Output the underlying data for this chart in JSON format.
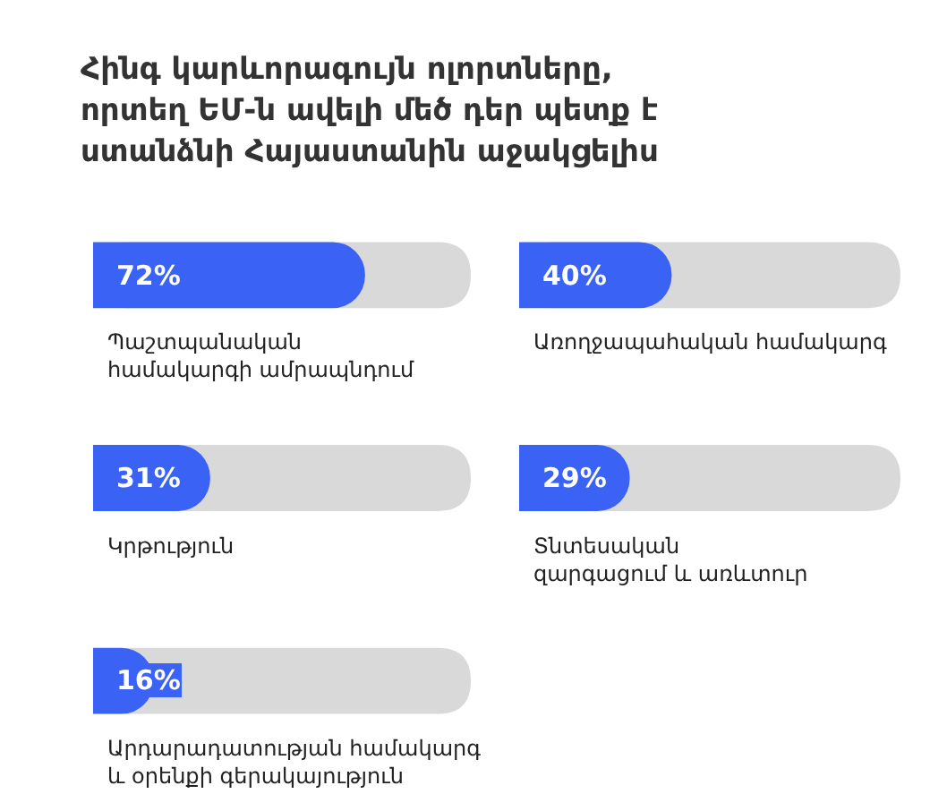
{
  "chart_data": [
    {
      "type": "other",
      "title": "Հինգ կարևորագույն ոլորտները, որտեղ ԵՄ-ն ավելի մեծ դեր պետք է ստանձնի Հայաստանին աջակցելիս"
    },
    {
      "type": "bar",
      "orientation": "horizontal",
      "categories": [
        "Պաշտպանական\nհամակարգի ամրապնդում",
        "Կրթություն",
        "Արդարադատության համակարգ\nև օրենքի գերակայություն"
      ],
      "values": [
        72,
        31,
        16
      ],
      "value_labels": [
        "72%",
        "31%",
        "16%"
      ],
      "color": "#3a63f6",
      "xlim": [
        0,
        100
      ]
    },
    {
      "type": "bar",
      "orientation": "horizontal",
      "categories": [
        "Առողջապահական համակարգ",
        "Տնտեսական\nզարգացում և առևտուր"
      ],
      "values": [
        40,
        29
      ],
      "value_labels": [
        "40%",
        "29%"
      ],
      "color": "#3a63f6",
      "xlim": [
        0,
        100
      ]
    }
  ]
}
